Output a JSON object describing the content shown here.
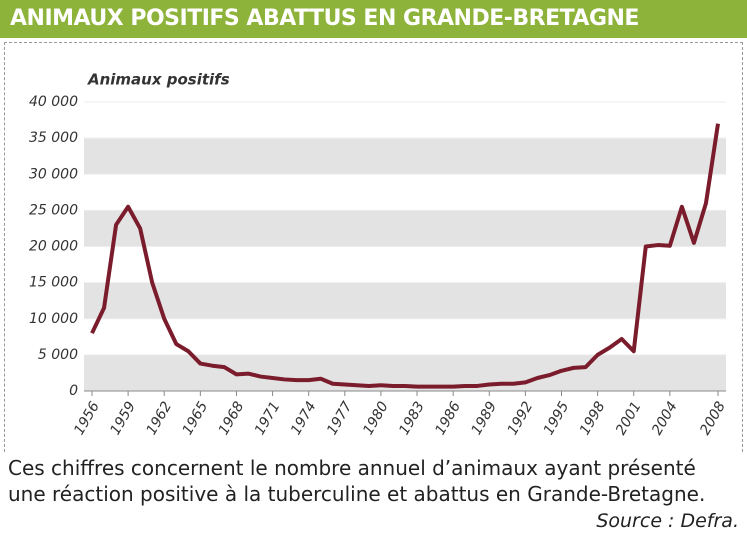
{
  "chart_data": {
    "type": "line",
    "title": "ANIMAUX POSITIFS ABATTUS EN GRANDE-BRETAGNE",
    "y_label": "Animaux positifs",
    "caption": "Ces chiffres concernent le nombre annuel d’animaux ayant présenté une réaction positive à la tuberculine et abattus en Grande-Bretagne.",
    "source": "Source : Defra.",
    "x": [
      1956,
      1957,
      1958,
      1959,
      1960,
      1961,
      1962,
      1963,
      1964,
      1965,
      1966,
      1967,
      1968,
      1969,
      1970,
      1971,
      1972,
      1973,
      1974,
      1975,
      1976,
      1977,
      1978,
      1979,
      1980,
      1981,
      1982,
      1983,
      1984,
      1985,
      1986,
      1987,
      1988,
      1989,
      1990,
      1991,
      1992,
      1993,
      1994,
      1995,
      1996,
      1997,
      1998,
      1999,
      2000,
      2001,
      2002,
      2003,
      2004,
      2005,
      2006,
      2007,
      2008
    ],
    "values": [
      8000,
      11500,
      23000,
      25500,
      22500,
      15000,
      10000,
      6500,
      5500,
      3800,
      3500,
      3300,
      2300,
      2400,
      2000,
      1800,
      1600,
      1500,
      1500,
      1700,
      1000,
      900,
      800,
      700,
      800,
      700,
      700,
      600,
      600,
      600,
      600,
      700,
      700,
      900,
      1000,
      1000,
      1200,
      1800,
      2200,
      2800,
      3200,
      3300,
      5000,
      6000,
      7200,
      5500,
      20000,
      20200,
      20100,
      25500,
      20500,
      26000,
      37000
    ],
    "color": "#7a1c2c",
    "xlim": [
      1956,
      2008
    ],
    "xticks": [
      1956,
      1959,
      1962,
      1965,
      1968,
      1971,
      1974,
      1977,
      1980,
      1983,
      1986,
      1989,
      1992,
      1995,
      1998,
      2001,
      2004,
      2008
    ],
    "ylim": [
      0,
      40000
    ],
    "yticks": [
      0,
      {
        "value": 5000,
        "label": "5 000"
      },
      {
        "value": 10000,
        "label": "10 000"
      },
      {
        "value": 15000,
        "label": "15 000"
      },
      {
        "value": 20000,
        "label": "20 000"
      },
      {
        "value": 25000,
        "label": "25 000"
      },
      {
        "value": 30000,
        "label": "30 000"
      },
      {
        "value": 35000,
        "label": "35 000"
      },
      {
        "value": 40000,
        "label": "40 000"
      }
    ],
    "grid": true
  }
}
